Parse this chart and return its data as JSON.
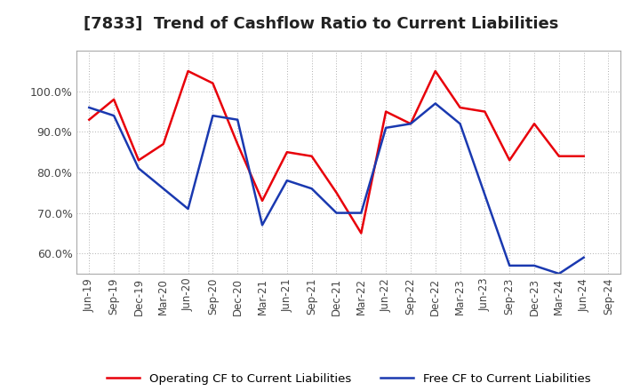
{
  "title": "[7833]  Trend of Cashflow Ratio to Current Liabilities",
  "x_labels": [
    "Jun-19",
    "Sep-19",
    "Dec-19",
    "Mar-20",
    "Jun-20",
    "Sep-20",
    "Dec-20",
    "Mar-21",
    "Jun-21",
    "Sep-21",
    "Dec-21",
    "Mar-22",
    "Jun-22",
    "Sep-22",
    "Dec-22",
    "Mar-23",
    "Jun-23",
    "Sep-23",
    "Dec-23",
    "Mar-24",
    "Jun-24",
    "Sep-24"
  ],
  "operating_cf": [
    93,
    98,
    83,
    87,
    105,
    102,
    87,
    73,
    85,
    84,
    75,
    65,
    95,
    92,
    105,
    96,
    95,
    83,
    92,
    84,
    84,
    null
  ],
  "free_cf": [
    96,
    94,
    81,
    76,
    71,
    94,
    93,
    67,
    78,
    76,
    70,
    70,
    91,
    92,
    97,
    92,
    null,
    57,
    57,
    55,
    59,
    null
  ],
  "operating_color": "#e8000a",
  "free_color": "#1a39b0",
  "ylim_min": 55,
  "ylim_max": 110,
  "yticks": [
    60,
    70,
    80,
    90,
    100
  ],
  "legend_labels": [
    "Operating CF to Current Liabilities",
    "Free CF to Current Liabilities"
  ],
  "background_color": "#ffffff",
  "grid_color": "#b0b0b0",
  "title_fontsize": 13,
  "tick_fontsize": 8.5,
  "ytick_fontsize": 9
}
